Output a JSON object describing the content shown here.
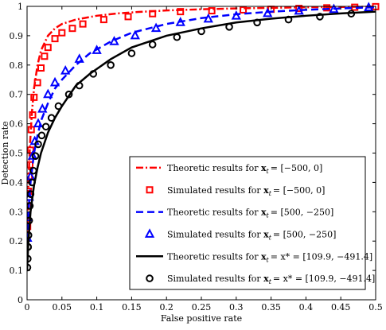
{
  "chart_data": {
    "type": "line",
    "xlabel": "False positive rate",
    "ylabel": "Detection rate",
    "xlim": [
      0,
      0.5
    ],
    "ylim": [
      0,
      1
    ],
    "xticks": [
      "0",
      "0.05",
      "0.1",
      "0.15",
      "0.2",
      "0.25",
      "0.3",
      "0.35",
      "0.4",
      "0.45",
      "0.5"
    ],
    "yticks": [
      "0",
      "0.1",
      "0.2",
      "0.3",
      "0.4",
      "0.5",
      "0.6",
      "0.7",
      "0.8",
      "0.9",
      "1"
    ],
    "grid": false,
    "legend_position": "bottom-right",
    "series": [
      {
        "name": "Theoretic results for x_t = [−500, 0]",
        "label_pre": "Theoretic results for ",
        "label_math": "= [−500, 0]",
        "style": "dash-dot",
        "color": "#ff0000",
        "marker": "none",
        "x": [
          0,
          0.001,
          0.002,
          0.004,
          0.007,
          0.01,
          0.015,
          0.02,
          0.03,
          0.04,
          0.05,
          0.07,
          0.1,
          0.13,
          0.16,
          0.2,
          0.25,
          0.3,
          0.35,
          0.4,
          0.45,
          0.5
        ],
        "y": [
          0.12,
          0.3,
          0.4,
          0.52,
          0.64,
          0.72,
          0.8,
          0.85,
          0.9,
          0.925,
          0.94,
          0.955,
          0.968,
          0.976,
          0.981,
          0.986,
          0.99,
          0.993,
          0.995,
          0.997,
          0.998,
          0.999
        ]
      },
      {
        "name": "Simulated results for x_t = [−500, 0]",
        "label_pre": "Simulated results for ",
        "label_math": "= [−500, 0]",
        "style": "none",
        "color": "#ff0000",
        "marker": "square",
        "x": [
          0.0008,
          0.0015,
          0.002,
          0.003,
          0.004,
          0.005,
          0.006,
          0.008,
          0.01,
          0.015,
          0.02,
          0.025,
          0.03,
          0.04,
          0.05,
          0.065,
          0.08,
          0.11,
          0.145,
          0.18,
          0.22,
          0.265,
          0.31,
          0.35,
          0.39,
          0.43,
          0.47,
          0.5
        ],
        "y": [
          0.25,
          0.32,
          0.37,
          0.42,
          0.46,
          0.51,
          0.58,
          0.63,
          0.69,
          0.74,
          0.79,
          0.83,
          0.86,
          0.89,
          0.91,
          0.925,
          0.94,
          0.955,
          0.965,
          0.975,
          0.982,
          0.985,
          0.988,
          0.99,
          0.993,
          0.995,
          0.997,
          0.999
        ]
      },
      {
        "name": "Theoretic results for x_t = [500, −250]",
        "label_pre": "Theoretic results for ",
        "label_math": "= [500, −250]",
        "style": "dashed",
        "color": "#0000ff",
        "marker": "none",
        "x": [
          0,
          0.002,
          0.005,
          0.01,
          0.015,
          0.02,
          0.03,
          0.04,
          0.05,
          0.07,
          0.09,
          0.12,
          0.15,
          0.2,
          0.25,
          0.3,
          0.35,
          0.4,
          0.45,
          0.5
        ],
        "y": [
          0.2,
          0.3,
          0.4,
          0.5,
          0.56,
          0.61,
          0.67,
          0.72,
          0.75,
          0.8,
          0.84,
          0.88,
          0.91,
          0.94,
          0.96,
          0.973,
          0.982,
          0.988,
          0.993,
          0.997
        ]
      },
      {
        "name": "Simulated results for x_t = [500, −250]",
        "label_pre": "Simulated results for ",
        "label_math": "= [500, −250]",
        "style": "none",
        "color": "#0000ff",
        "marker": "triangle",
        "x": [
          0.0005,
          0.0015,
          0.003,
          0.005,
          0.008,
          0.011,
          0.016,
          0.022,
          0.03,
          0.04,
          0.055,
          0.075,
          0.1,
          0.125,
          0.155,
          0.185,
          0.22,
          0.26,
          0.3,
          0.345,
          0.39,
          0.44,
          0.49
        ],
        "y": [
          0.21,
          0.28,
          0.35,
          0.42,
          0.49,
          0.54,
          0.6,
          0.65,
          0.7,
          0.74,
          0.78,
          0.82,
          0.85,
          0.88,
          0.9,
          0.925,
          0.945,
          0.957,
          0.967,
          0.976,
          0.984,
          0.99,
          0.996
        ]
      },
      {
        "name": "Theoretic results for x_t = x_t* = [109.9, −491.4]",
        "label_pre": "Theoretic results for ",
        "label_math": "= x* = [109.9, −491.4]",
        "style": "solid",
        "color": "#000000",
        "marker": "none",
        "x": [
          0,
          0.002,
          0.005,
          0.01,
          0.015,
          0.02,
          0.03,
          0.04,
          0.05,
          0.07,
          0.09,
          0.12,
          0.15,
          0.2,
          0.25,
          0.3,
          0.35,
          0.4,
          0.45,
          0.5
        ],
        "y": [
          0.1,
          0.2,
          0.3,
          0.39,
          0.45,
          0.5,
          0.57,
          0.62,
          0.66,
          0.73,
          0.77,
          0.82,
          0.86,
          0.9,
          0.925,
          0.945,
          0.958,
          0.968,
          0.976,
          0.982
        ]
      },
      {
        "name": "Simulated results for x_t = x_t* = [109.9, −491.4]",
        "label_pre": "Simulated results for ",
        "label_math": "= x* = [109.9, −491.4]",
        "style": "none",
        "color": "#000000",
        "marker": "circle",
        "x": [
          0.0005,
          0.001,
          0.0015,
          0.002,
          0.003,
          0.004,
          0.005,
          0.007,
          0.009,
          0.012,
          0.016,
          0.021,
          0.027,
          0.035,
          0.045,
          0.06,
          0.075,
          0.095,
          0.12,
          0.15,
          0.18,
          0.215,
          0.25,
          0.29,
          0.33,
          0.375,
          0.42,
          0.465
        ],
        "y": [
          0.11,
          0.14,
          0.18,
          0.22,
          0.27,
          0.32,
          0.36,
          0.4,
          0.44,
          0.49,
          0.53,
          0.56,
          0.59,
          0.62,
          0.66,
          0.7,
          0.73,
          0.77,
          0.8,
          0.84,
          0.87,
          0.895,
          0.915,
          0.93,
          0.945,
          0.955,
          0.965,
          0.975
        ]
      }
    ]
  }
}
